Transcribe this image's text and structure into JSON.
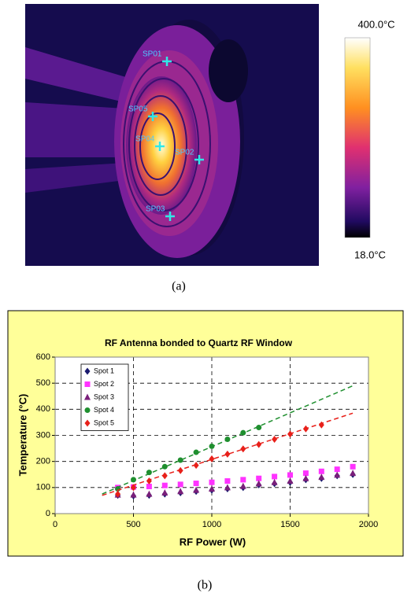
{
  "figure_a": {
    "caption": "(a)",
    "colorbar": {
      "max_label": "400.0°C",
      "min_label": "18.0°C"
    },
    "spots": [
      {
        "label": "SP01"
      },
      {
        "label": "SP05"
      },
      {
        "label": "SP04"
      },
      {
        "label": "SP02"
      },
      {
        "label": "SP03"
      }
    ]
  },
  "chart_data": {
    "type": "scatter",
    "title": "RF Antenna bonded to Quartz RF Window",
    "x_label": "RF Power (W)",
    "y_label": "Temperature (°C)",
    "xlim": [
      0,
      2000
    ],
    "xticks": [
      0,
      500,
      1000,
      1500,
      2000
    ],
    "ylim": [
      0,
      600
    ],
    "yticks": [
      0,
      100,
      200,
      300,
      400,
      500,
      600
    ],
    "grid": true,
    "legend": "upper left",
    "series": [
      {
        "name": "Spot 1",
        "color": "#1a1a6e",
        "marker": "diamond",
        "x": [
          400,
          500,
          600,
          700,
          800,
          900,
          1000,
          1100,
          1200,
          1300,
          1400,
          1500,
          1600,
          1700,
          1800,
          1900
        ],
        "values": [
          70,
          68,
          70,
          75,
          80,
          85,
          90,
          95,
          100,
          110,
          115,
          120,
          130,
          135,
          145,
          150
        ]
      },
      {
        "name": "Spot 2",
        "color": "#ff33ff",
        "marker": "square",
        "x": [
          400,
          500,
          600,
          700,
          800,
          900,
          1000,
          1100,
          1200,
          1300,
          1400,
          1500,
          1600,
          1700,
          1800,
          1900
        ],
        "values": [
          100,
          102,
          104,
          108,
          112,
          116,
          120,
          125,
          130,
          135,
          142,
          148,
          155,
          162,
          170,
          180
        ]
      },
      {
        "name": "Spot 3",
        "color": "#7a1f7a",
        "marker": "triangle",
        "x": [
          400,
          500,
          600,
          700,
          800,
          900,
          1000,
          1100,
          1200,
          1300,
          1400,
          1500,
          1600,
          1700,
          1800,
          1900
        ],
        "values": [
          72,
          72,
          75,
          80,
          85,
          90,
          95,
          100,
          105,
          115,
          120,
          125,
          135,
          140,
          148,
          155
        ]
      },
      {
        "name": "Spot 4",
        "color": "#1f8f2f",
        "marker": "circle",
        "x": [
          400,
          500,
          600,
          700,
          800,
          900,
          1000,
          1100,
          1200,
          1300
        ],
        "values": [
          95,
          130,
          158,
          180,
          205,
          235,
          258,
          285,
          310,
          330
        ],
        "trend": {
          "x": [
            300,
            1900
          ],
          "values": [
            75,
            490
          ]
        }
      },
      {
        "name": "Spot 5",
        "color": "#e8201a",
        "marker": "diamond",
        "x": [
          400,
          500,
          600,
          700,
          800,
          900,
          1000,
          1100,
          1200,
          1300,
          1400,
          1500,
          1600,
          1700
        ],
        "values": [
          75,
          100,
          125,
          145,
          165,
          185,
          210,
          228,
          248,
          265,
          285,
          305,
          325,
          340
        ],
        "trend": {
          "x": [
            300,
            1900
          ],
          "values": [
            70,
            385
          ]
        }
      }
    ],
    "caption": "(b)"
  }
}
